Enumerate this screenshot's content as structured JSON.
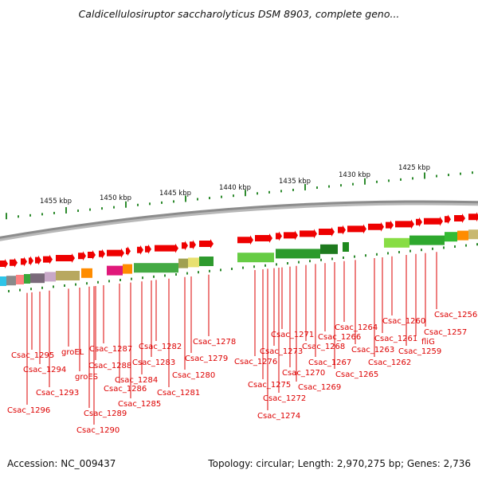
{
  "title": "Caldicellulosiruptor saccharolyticus DSM 8903, complete geno...",
  "footer": {
    "accession": "Accession: NC_009437",
    "summary": "Topology: circular; Length: 2,970,275 bp; Genes: 2,736"
  },
  "colors": {
    "feature_red": "#ee0000",
    "label_red": "#dd0000",
    "backbone": "#8c8c8c",
    "tick_green": "#2e8b2e"
  },
  "scale_labels": [
    "1455 kbp",
    "1450 kbp",
    "1445 kbp",
    "1440 kbp",
    "1435 kbp",
    "1430 kbp",
    "1425 kbp"
  ],
  "gene_labels": [
    "Csac_1295",
    "Csac_1294",
    "Csac_1293",
    "Csac_1296",
    "groEL",
    "groES",
    "Csac_1287",
    "Csac_1288",
    "Csac_1289",
    "Csac_1290",
    "Csac_1286",
    "Csac_1285",
    "Csac_1284",
    "Csac_1283",
    "Csac_1282",
    "Csac_1281",
    "Csac_1280",
    "Csac_1279",
    "Csac_1278",
    "Csac_1276",
    "Csac_1275",
    "Csac_1274",
    "Csac_1273",
    "Csac_1272",
    "Csac_1271",
    "Csac_1270",
    "Csac_1269",
    "Csac_1268",
    "Csac_1267",
    "Csac_1266",
    "Csac_1265",
    "Csac_1264",
    "Csac_1263",
    "Csac_1262",
    "Csac_1261",
    "Csac_1260",
    "Csac_1259",
    "fliG",
    "Csac_1257",
    "Csac_1256"
  ]
}
